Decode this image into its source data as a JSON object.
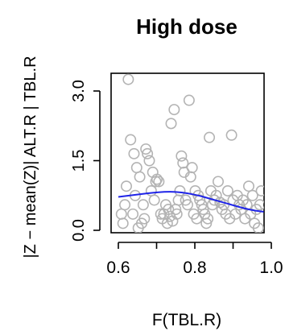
{
  "chart_data": {
    "type": "scatter",
    "title": "High dose",
    "xlabel": "F(TBL.R)",
    "ylabel": "|Z − mean(Z)|   ALT.R | TBL.R",
    "xlim": [
      0.6,
      1.0
    ],
    "ylim": [
      0.0,
      3.0
    ],
    "xticks": [
      0.6,
      0.8,
      1.0
    ],
    "xtick_labels": [
      "0.6",
      "0.8",
      "1.0"
    ],
    "yticks": [
      0.0,
      1.5,
      3.0
    ],
    "ytick_labels": [
      "0.0",
      "1.5",
      "3.0"
    ],
    "grid": false,
    "point_color": "#b3b3b3",
    "smooth_color": "#1f24e8",
    "points": [
      [
        0.608,
        0.35
      ],
      [
        0.612,
        0.15
      ],
      [
        0.617,
        0.55
      ],
      [
        0.621,
        0.95
      ],
      [
        0.626,
        3.25
      ],
      [
        0.632,
        1.95
      ],
      [
        0.638,
        0.35
      ],
      [
        0.641,
        1.65
      ],
      [
        0.644,
        0.75
      ],
      [
        0.648,
        1.35
      ],
      [
        0.652,
        0.05
      ],
      [
        0.656,
        1.15
      ],
      [
        0.661,
        0.15
      ],
      [
        0.665,
        0.55
      ],
      [
        0.668,
        0.25
      ],
      [
        0.672,
        1.75
      ],
      [
        0.676,
        1.65
      ],
      [
        0.681,
        1.5
      ],
      [
        0.686,
        0.85
      ],
      [
        0.69,
        1.25
      ],
      [
        0.694,
        0.65
      ],
      [
        0.698,
        1.05
      ],
      [
        0.701,
        1.1
      ],
      [
        0.706,
        1.05
      ],
      [
        0.711,
        0.35
      ],
      [
        0.715,
        0.25
      ],
      [
        0.719,
        0.35
      ],
      [
        0.724,
        0.55
      ],
      [
        0.728,
        0.15
      ],
      [
        0.731,
        0.45
      ],
      [
        0.735,
        0.3
      ],
      [
        0.738,
        2.3
      ],
      [
        0.742,
        0.2
      ],
      [
        0.746,
        2.6
      ],
      [
        0.75,
        0.45
      ],
      [
        0.753,
        0.35
      ],
      [
        0.757,
        0.65
      ],
      [
        0.761,
        0.85
      ],
      [
        0.765,
        1.6
      ],
      [
        0.769,
        1.45
      ],
      [
        0.772,
        1.25
      ],
      [
        0.776,
        0.65
      ],
      [
        0.781,
        0.55
      ],
      [
        0.785,
        2.8
      ],
      [
        0.789,
        1.15
      ],
      [
        0.793,
        1.35
      ],
      [
        0.797,
        0.35
      ],
      [
        0.801,
        0.85
      ],
      [
        0.805,
        0.25
      ],
      [
        0.809,
        0.75
      ],
      [
        0.813,
        0.65
      ],
      [
        0.818,
        0.55
      ],
      [
        0.822,
        0.45
      ],
      [
        0.826,
        0.35
      ],
      [
        0.83,
        0.15
      ],
      [
        0.834,
        0.25
      ],
      [
        0.838,
        2.0
      ],
      [
        0.842,
        0.85
      ],
      [
        0.846,
        0.55
      ],
      [
        0.851,
        0.65
      ],
      [
        0.856,
        0.75
      ],
      [
        0.861,
        1.05
      ],
      [
        0.866,
        0.6
      ],
      [
        0.871,
        0.45
      ],
      [
        0.876,
        0.55
      ],
      [
        0.881,
        0.35
      ],
      [
        0.886,
        0.85
      ],
      [
        0.891,
        0.25
      ],
      [
        0.896,
        2.05
      ],
      [
        0.9,
        0.65
      ],
      [
        0.906,
        0.35
      ],
      [
        0.911,
        0.75
      ],
      [
        0.916,
        0.55
      ],
      [
        0.921,
        0.45
      ],
      [
        0.926,
        0.65
      ],
      [
        0.931,
        0.25
      ],
      [
        0.936,
        0.55
      ],
      [
        0.941,
        0.95
      ],
      [
        0.946,
        0.35
      ],
      [
        0.951,
        0.75
      ],
      [
        0.956,
        0.15
      ],
      [
        0.961,
        0.45
      ],
      [
        0.966,
        0.05
      ],
      [
        0.97,
        0.55
      ],
      [
        0.974,
        0.85
      ]
    ],
    "smooth": {
      "x": [
        0.6,
        0.63,
        0.66,
        0.69,
        0.72,
        0.75,
        0.78,
        0.81,
        0.84,
        0.87,
        0.9,
        0.93,
        0.96,
        0.98
      ],
      "y": [
        0.72,
        0.75,
        0.78,
        0.81,
        0.83,
        0.83,
        0.8,
        0.75,
        0.68,
        0.61,
        0.54,
        0.47,
        0.42,
        0.4
      ]
    }
  }
}
